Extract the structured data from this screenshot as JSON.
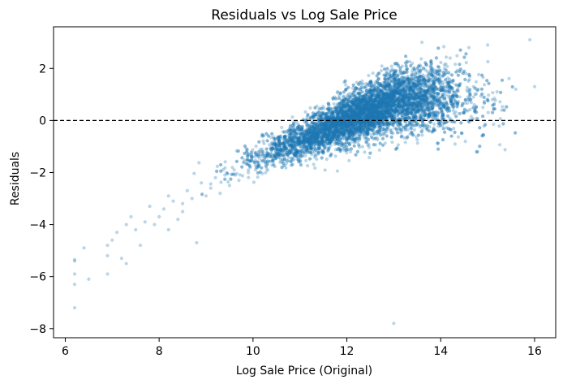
{
  "chart_data": {
    "type": "scatter",
    "title": "Residuals vs Log Sale Price",
    "xlabel": "Log Sale Price (Original)",
    "ylabel": "Residuals",
    "xlim": [
      5.75,
      16.45
    ],
    "ylim": [
      -8.35,
      3.6
    ],
    "xticks": [
      6,
      8,
      10,
      12,
      14,
      16
    ],
    "yticks": [
      2,
      0,
      -2,
      -4,
      -6,
      -8
    ],
    "xtick_labels": [
      "6",
      "8",
      "10",
      "12",
      "14",
      "16"
    ],
    "ytick_labels": [
      "2",
      "0",
      "−2",
      "−4",
      "−6",
      "−8"
    ],
    "reference_line": {
      "y": 0,
      "style": "dashed",
      "color": "#000000"
    },
    "grid": false,
    "legend": "none",
    "point_color": "#1f77b4",
    "point_alpha": 0.3,
    "trend": {
      "description_x_range": [
        6.2,
        15.9
      ],
      "residual_vs_x_slope": 0.75,
      "residual_at_x12": 0.0
    },
    "points": [
      [
        6.2,
        -7.2
      ],
      [
        6.2,
        -6.3
      ],
      [
        6.2,
        -5.9
      ],
      [
        6.2,
        -5.4
      ],
      [
        6.2,
        -5.35
      ],
      [
        6.4,
        -4.9
      ],
      [
        6.5,
        -6.1
      ],
      [
        6.9,
        -4.8
      ],
      [
        6.9,
        -5.2
      ],
      [
        6.9,
        -5.9
      ],
      [
        7.0,
        -4.6
      ],
      [
        7.1,
        -4.3
      ],
      [
        7.2,
        -5.3
      ],
      [
        7.3,
        -4.0
      ],
      [
        7.3,
        -5.5
      ],
      [
        7.4,
        -3.7
      ],
      [
        7.5,
        -4.2
      ],
      [
        7.6,
        -4.8
      ],
      [
        7.7,
        -3.9
      ],
      [
        7.8,
        -3.3
      ],
      [
        7.9,
        -4.0
      ],
      [
        8.0,
        -3.7
      ],
      [
        8.1,
        -3.4
      ],
      [
        8.2,
        -2.9
      ],
      [
        8.2,
        -4.2
      ],
      [
        8.3,
        -3.1
      ],
      [
        8.4,
        -3.8
      ],
      [
        8.5,
        -3.2
      ],
      [
        8.5,
        -3.5
      ],
      [
        8.6,
        -2.7
      ],
      [
        8.7,
        -3.0
      ],
      [
        8.8,
        -4.7
      ],
      [
        8.9,
        -2.4
      ],
      [
        9.0,
        -2.9
      ],
      [
        9.1,
        -2.6
      ],
      [
        9.2,
        -2.2
      ],
      [
        9.3,
        -2.8
      ],
      [
        9.4,
        -2.1
      ],
      [
        9.5,
        -2.5
      ],
      [
        9.6,
        -1.9
      ],
      [
        9.7,
        -2.3
      ],
      [
        9.8,
        -1.6
      ],
      [
        9.9,
        -2.0
      ],
      [
        10.0,
        -1.4
      ],
      [
        10.1,
        -1.8
      ],
      [
        10.2,
        -1.2
      ],
      [
        10.3,
        -1.6
      ],
      [
        10.4,
        -1.0
      ],
      [
        10.5,
        -1.4
      ],
      [
        10.6,
        -0.9
      ],
      [
        10.7,
        -1.3
      ],
      [
        10.8,
        -0.7
      ],
      [
        10.9,
        -1.1
      ],
      [
        11.0,
        -0.5
      ],
      [
        11.1,
        -0.9
      ],
      [
        11.2,
        -0.3
      ],
      [
        11.3,
        -0.7
      ],
      [
        11.4,
        -0.2
      ],
      [
        11.5,
        -0.5
      ],
      [
        11.6,
        0.0
      ],
      [
        11.7,
        -0.3
      ],
      [
        11.8,
        0.2
      ],
      [
        11.9,
        -0.1
      ],
      [
        12.0,
        0.3
      ],
      [
        12.1,
        0.0
      ],
      [
        12.2,
        0.5
      ],
      [
        12.3,
        0.1
      ],
      [
        12.4,
        0.6
      ],
      [
        12.5,
        0.2
      ],
      [
        12.6,
        0.8
      ],
      [
        12.7,
        0.3
      ],
      [
        12.8,
        0.9
      ],
      [
        12.9,
        0.4
      ],
      [
        13.0,
        1.0
      ],
      [
        13.0,
        -7.8
      ],
      [
        13.1,
        0.5
      ],
      [
        13.2,
        1.2
      ],
      [
        13.3,
        0.6
      ],
      [
        13.4,
        1.3
      ],
      [
        13.5,
        0.7
      ],
      [
        13.6,
        3.0
      ],
      [
        13.7,
        0.8
      ],
      [
        13.8,
        2.0
      ],
      [
        13.9,
        0.6
      ],
      [
        14.0,
        1.5
      ],
      [
        14.1,
        0.5
      ],
      [
        14.2,
        2.4
      ],
      [
        14.3,
        0.7
      ],
      [
        14.4,
        1.4
      ],
      [
        14.5,
        0.3
      ],
      [
        14.6,
        2.8
      ],
      [
        14.7,
        0.9
      ],
      [
        14.8,
        1.2
      ],
      [
        14.9,
        0.5
      ],
      [
        15.0,
        2.9
      ],
      [
        15.1,
        0.8
      ],
      [
        15.2,
        1.1
      ],
      [
        15.3,
        0.4
      ],
      [
        15.6,
        1.2
      ],
      [
        15.9,
        3.1
      ],
      [
        16.0,
        1.3
      ]
    ]
  }
}
